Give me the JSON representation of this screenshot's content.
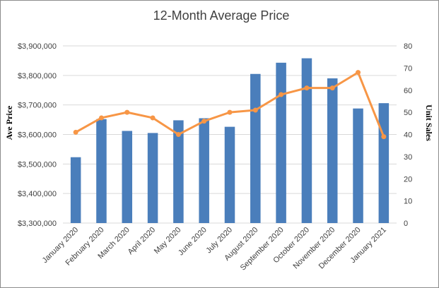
{
  "chart_data": {
    "type": "bar",
    "title": "12-Month Average Price",
    "ylabel": "Ave Price",
    "y2label": "Unit Sales",
    "categories": [
      "January 2020",
      "February 2020",
      "March 2020",
      "April 2020",
      "May 2020",
      "June 2020",
      "July 2020",
      "August 2020",
      "September 2020",
      "October 2020",
      "November 2020",
      "December 2020",
      "January 2021"
    ],
    "ylim": [
      3300000,
      3900000
    ],
    "y_ticks": [
      "$3,300,000",
      "$3,400,000",
      "$3,500,000",
      "$3,600,000",
      "$3,700,000",
      "$3,800,000",
      "$3,900,000"
    ],
    "y2lim": [
      0,
      80
    ],
    "y2_ticks": [
      "0",
      "10",
      "20",
      "30",
      "40",
      "50",
      "60",
      "70",
      "80"
    ],
    "grid": true,
    "series": [
      {
        "type": "bar",
        "axis": "left",
        "color": "#4a7ebb",
        "values": [
          3523000,
          3652000,
          3612000,
          3605000,
          3648000,
          3655000,
          3626000,
          3805000,
          3843000,
          3858000,
          3790000,
          3688000,
          3706000
        ]
      },
      {
        "type": "line",
        "axis": "right",
        "color": "#f79646",
        "values": [
          41,
          47.5,
          50,
          47.5,
          40,
          46,
          50,
          51,
          58,
          61,
          61,
          68,
          39
        ]
      }
    ]
  }
}
